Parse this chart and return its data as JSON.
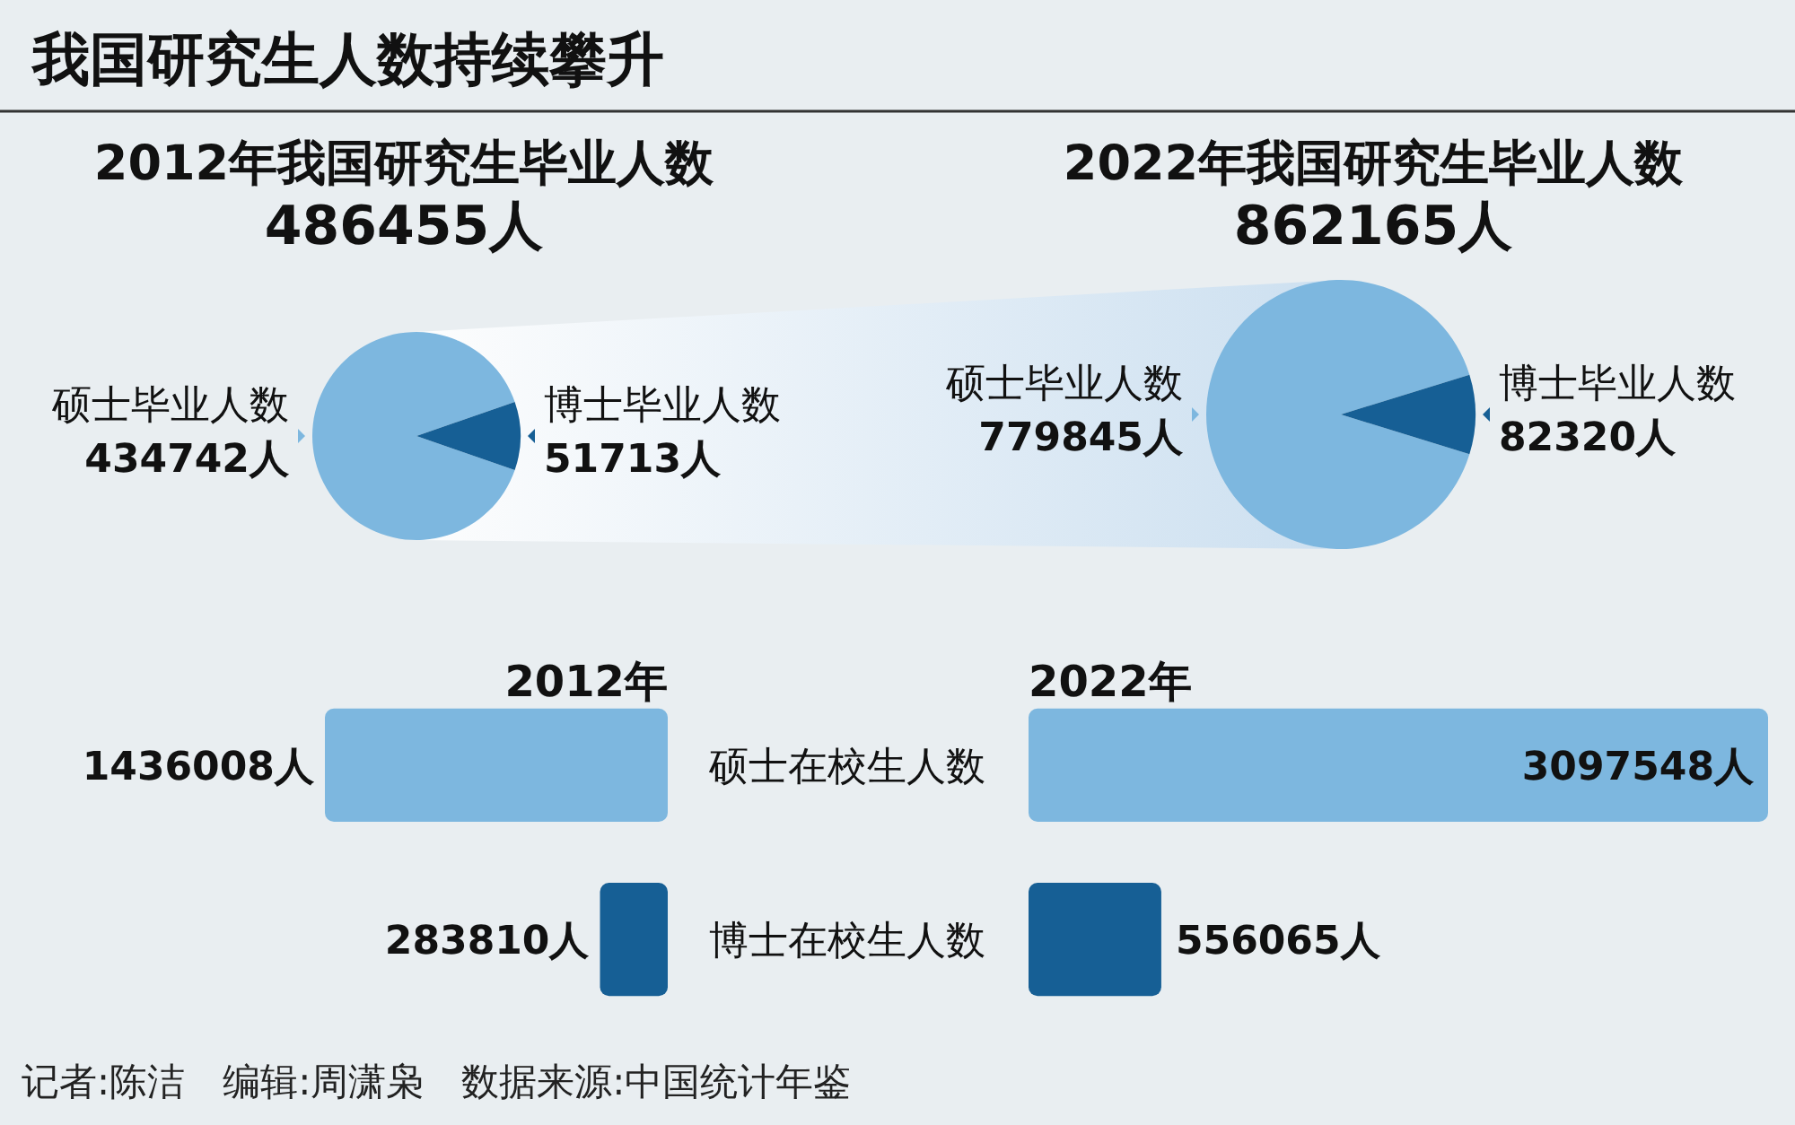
{
  "chart_data": [
    {
      "type": "pie",
      "title": "2012年我国研究生毕业人数",
      "subtitle": "486455人",
      "annotations": [
        "我国研究生人数持续攀升"
      ],
      "categories": [
        "硕士毕业人数",
        "博士毕业人数"
      ],
      "values": [
        434742,
        51713
      ],
      "colors": [
        "#7db7df",
        "#165f95"
      ],
      "value_labels": [
        "434742人",
        "51713人"
      ]
    },
    {
      "type": "pie",
      "title": "2022年我国研究生毕业人数",
      "subtitle": "862165人",
      "categories": [
        "硕士毕业人数",
        "博士毕业人数"
      ],
      "values": [
        779845,
        82320
      ],
      "colors": [
        "#7db7df",
        "#165f95"
      ],
      "value_labels": [
        "779845人",
        "82320人"
      ]
    },
    {
      "type": "bar",
      "orientation": "horizontal",
      "title": "2012年",
      "categories": [
        "硕士在校生人数",
        "博士在校生人数"
      ],
      "values": [
        1436008,
        283810
      ],
      "colors": [
        "#7db7df",
        "#165f95"
      ],
      "value_labels": [
        "1436008人",
        "283810人"
      ]
    },
    {
      "type": "bar",
      "orientation": "horizontal",
      "title": "2022年",
      "categories": [
        null,
        null
      ],
      "values": [
        3097548,
        556065
      ],
      "colors": [
        "#7db7df",
        "#165f95"
      ],
      "value_labels": [
        "3097548人",
        "556065人"
      ],
      "annotations": [
        "记者:陈洁　编辑:周潇枭　数据来源:中国统计年鉴"
      ]
    }
  ]
}
